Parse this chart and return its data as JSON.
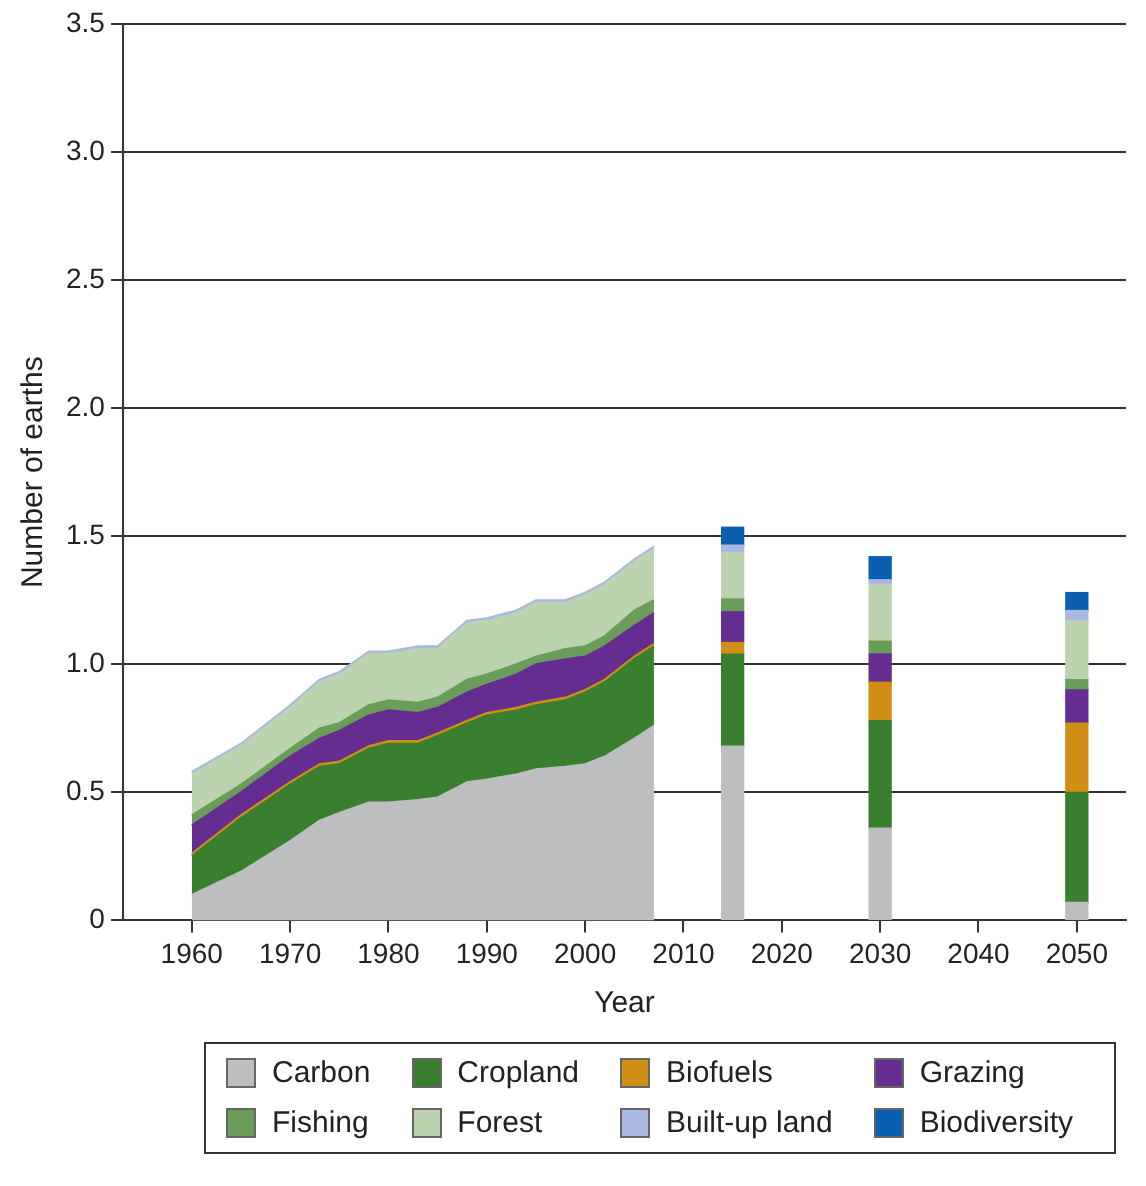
{
  "chart_data": {
    "type": "area",
    "xlabel": "Year",
    "ylabel": "Number of earths",
    "xlim": [
      1953,
      2055
    ],
    "xticks": [
      1960,
      1970,
      1980,
      1990,
      2000,
      2010,
      2020,
      2030,
      2040,
      2050
    ],
    "ylim": [
      0,
      3.5
    ],
    "yticks": [
      0,
      0.5,
      {
        "value": 1,
        "label": "1.0"
      },
      1.5,
      {
        "value": 2,
        "label": "2.0"
      },
      2.5,
      {
        "value": 3,
        "label": "3.0"
      },
      3.5
    ],
    "grid": "y",
    "legend": "bottom",
    "stacked": true,
    "series": [
      {
        "color": "#bcbec0",
        "x": [
          1960,
          1965,
          1970,
          1973,
          1975,
          1978,
          1980,
          1983,
          1985,
          1988,
          1990,
          1993,
          1995,
          1998,
          2000,
          2002,
          2005,
          2007
        ],
        "values": [
          0.1,
          0.19,
          0.31,
          0.39,
          0.42,
          0.46,
          0.46,
          0.47,
          0.48,
          0.54,
          0.55,
          0.57,
          0.59,
          0.6,
          0.61,
          0.64,
          0.71,
          0.76
        ]
      },
      {
        "color": "#3a7f2f",
        "x": [
          1960,
          1965,
          1970,
          1973,
          1975,
          1978,
          1980,
          1983,
          1985,
          1988,
          1990,
          1993,
          1995,
          1998,
          2000,
          2002,
          2005,
          2007
        ],
        "values": [
          0.15,
          0.21,
          0.22,
          0.21,
          0.19,
          0.21,
          0.23,
          0.22,
          0.24,
          0.23,
          0.25,
          0.25,
          0.25,
          0.26,
          0.28,
          0.29,
          0.31,
          0.31
        ]
      },
      {
        "color": "#d08f14",
        "x": [
          1960,
          1965,
          1970,
          1973,
          1975,
          1978,
          1980,
          1983,
          1985,
          1988,
          1990,
          1993,
          1995,
          1998,
          2000,
          2002,
          2005,
          2007
        ],
        "values": [
          0.01,
          0.01,
          0.01,
          0.01,
          0.01,
          0.01,
          0.01,
          0.01,
          0.01,
          0.01,
          0.01,
          0.01,
          0.01,
          0.01,
          0.01,
          0.01,
          0.01,
          0.01
        ]
      },
      {
        "color": "#652d90",
        "x": [
          1960,
          1965,
          1970,
          1973,
          1975,
          1978,
          1980,
          1983,
          1985,
          1988,
          1990,
          1993,
          1995,
          1998,
          2000,
          2002,
          2005,
          2007
        ],
        "values": [
          0.11,
          0.09,
          0.1,
          0.1,
          0.12,
          0.12,
          0.12,
          0.11,
          0.1,
          0.11,
          0.11,
          0.13,
          0.15,
          0.15,
          0.13,
          0.13,
          0.12,
          0.12
        ]
      },
      {
        "color": "#6a9d59",
        "x": [
          1960,
          1965,
          1970,
          1973,
          1975,
          1978,
          1980,
          1983,
          1985,
          1988,
          1990,
          1993,
          1995,
          1998,
          2000,
          2002,
          2005,
          2007
        ],
        "values": [
          0.04,
          0.03,
          0.03,
          0.04,
          0.03,
          0.04,
          0.04,
          0.04,
          0.04,
          0.05,
          0.04,
          0.04,
          0.03,
          0.04,
          0.04,
          0.04,
          0.06,
          0.05
        ]
      },
      {
        "color": "#bcd3b0",
        "x": [
          1960,
          1965,
          1970,
          1973,
          1975,
          1978,
          1980,
          1983,
          1985,
          1988,
          1990,
          1993,
          1995,
          1998,
          2000,
          2002,
          2005,
          2007
        ],
        "values": [
          0.16,
          0.15,
          0.16,
          0.18,
          0.19,
          0.2,
          0.18,
          0.21,
          0.19,
          0.22,
          0.21,
          0.2,
          0.21,
          0.18,
          0.2,
          0.2,
          0.19,
          0.2
        ]
      },
      {
        "color": "#a9b8e0",
        "x": [
          1960,
          1965,
          1970,
          1973,
          1975,
          1978,
          1980,
          1983,
          1985,
          1988,
          1990,
          1993,
          1995,
          1998,
          2000,
          2002,
          2005,
          2007
        ],
        "values": [
          0.01,
          0.01,
          0.01,
          0.01,
          0.01,
          0.01,
          0.01,
          0.01,
          0.01,
          0.01,
          0.01,
          0.01,
          0.01,
          0.01,
          0.01,
          0.01,
          0.01,
          0.01
        ]
      },
      {
        "type": "bar",
        "name": "Carbon",
        "color": "#bcbec0",
        "x": [
          2015,
          2030,
          2050
        ],
        "values": [
          0.68,
          0.36,
          0.07
        ]
      },
      {
        "type": "bar",
        "name": "Cropland",
        "color": "#3a7f2f",
        "x": [
          2015,
          2030,
          2050
        ],
        "values": [
          0.36,
          0.42,
          0.43
        ]
      },
      {
        "type": "bar",
        "name": "Biofuels",
        "color": "#d08f14",
        "x": [
          2015,
          2030,
          2050
        ],
        "values": [
          0.045,
          0.15,
          0.27
        ]
      },
      {
        "type": "bar",
        "name": "Grazing",
        "color": "#652d90",
        "x": [
          2015,
          2030,
          2050
        ],
        "values": [
          0.12,
          0.11,
          0.13
        ]
      },
      {
        "type": "bar",
        "name": "Fishing",
        "color": "#6a9d59",
        "x": [
          2015,
          2030,
          2050
        ],
        "values": [
          0.05,
          0.05,
          0.04
        ]
      },
      {
        "type": "bar",
        "name": "Forest",
        "color": "#bcd3b0",
        "x": [
          2015,
          2030,
          2050
        ],
        "values": [
          0.18,
          0.22,
          0.23
        ]
      },
      {
        "type": "bar",
        "name": "Built-up land",
        "color": "#a9b8e0",
        "x": [
          2015,
          2030,
          2050
        ],
        "values": [
          0.03,
          0.02,
          0.04
        ]
      },
      {
        "type": "bar",
        "name": "Biodiversity",
        "color": "#0a5fb0",
        "x": [
          2015,
          2030,
          2050
        ],
        "values": [
          0.07,
          0.09,
          0.07
        ]
      }
    ]
  }
}
